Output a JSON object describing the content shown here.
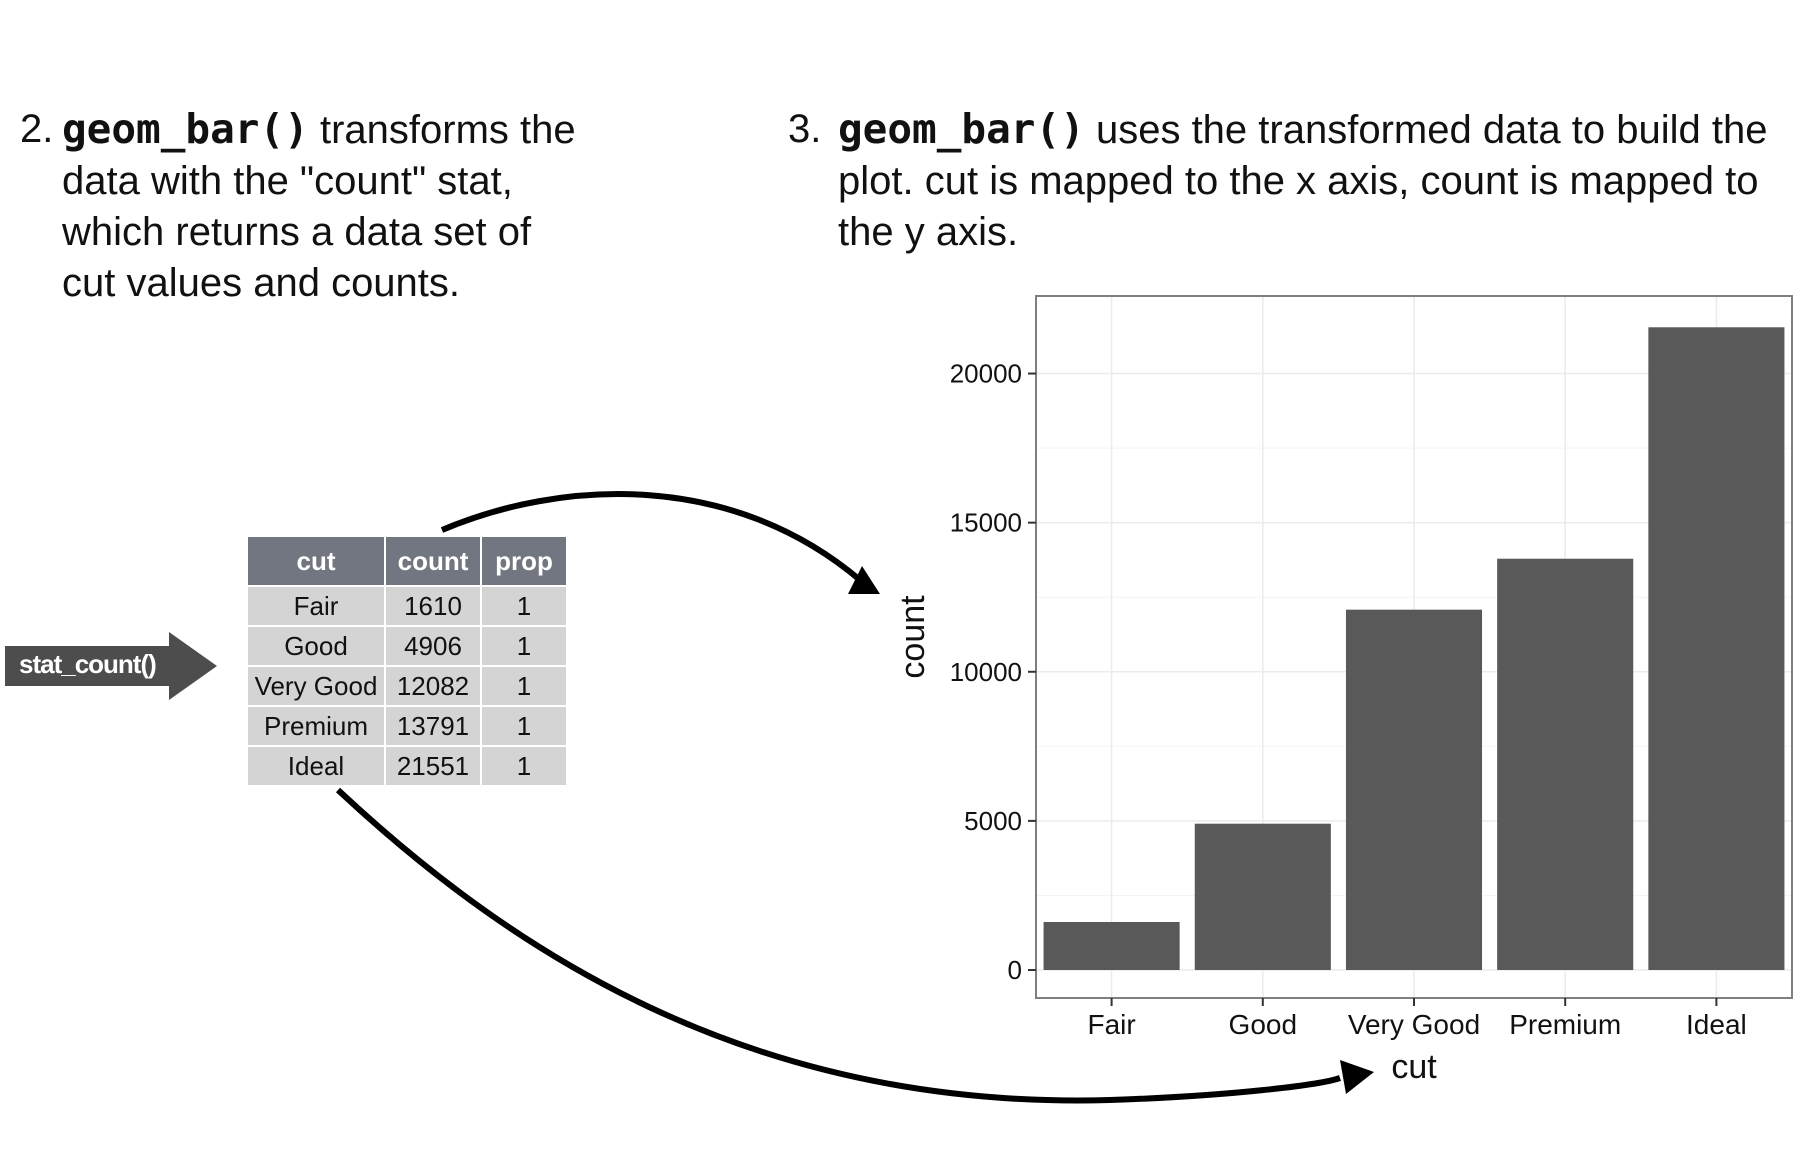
{
  "step2": {
    "number": "2.",
    "code": "geom_bar()",
    "text": " transforms the data with the \"count\" stat, which returns a data set of cut values and counts."
  },
  "step3": {
    "number": "3.",
    "code": "geom_bar()",
    "text": " uses the transformed data to build the plot. cut is mapped to the x axis, count is mapped to the y axis."
  },
  "stat_label": "stat_count()",
  "table": {
    "headers": [
      "cut",
      "count",
      "prop"
    ],
    "rows": [
      [
        "Fair",
        "1610",
        "1"
      ],
      [
        "Good",
        "4906",
        "1"
      ],
      [
        "Very Good",
        "12082",
        "1"
      ],
      [
        "Premium",
        "13791",
        "1"
      ],
      [
        "Ideal",
        "21551",
        "1"
      ]
    ]
  },
  "colors": {
    "bar": "#595959",
    "table_header": "#717680",
    "table_cell": "#d4d4d4",
    "tag": "#4d4d4d",
    "grid": "#ebebeb",
    "arrow": "#000000"
  },
  "chart_data": {
    "type": "bar",
    "categories": [
      "Fair",
      "Good",
      "Very Good",
      "Premium",
      "Ideal"
    ],
    "values": [
      1610,
      4906,
      12082,
      13791,
      21551
    ],
    "xlabel": "cut",
    "ylabel": "count",
    "ylim": [
      0,
      22600
    ],
    "yticks": [
      0,
      5000,
      10000,
      15000,
      20000
    ],
    "grid": true
  }
}
